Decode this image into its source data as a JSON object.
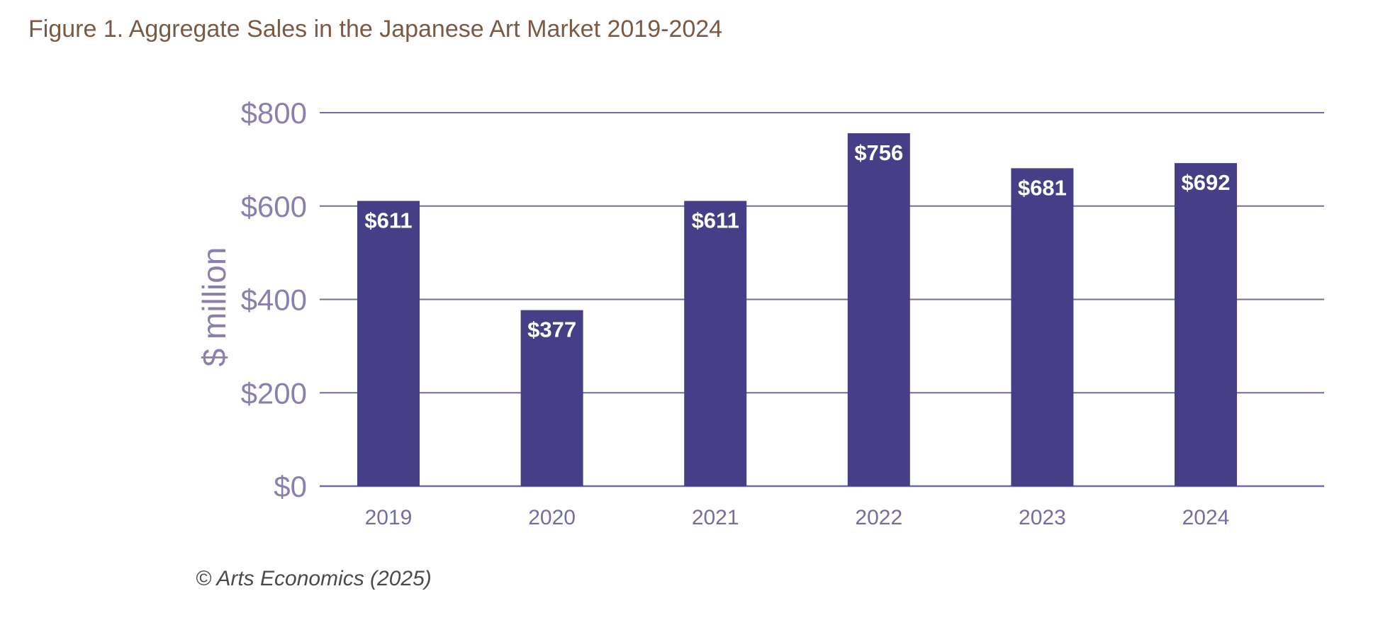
{
  "figure": {
    "title": "Figure 1. Aggregate Sales in the Japanese Art Market 2019-2024",
    "source": "©  Arts Economics (2025)"
  },
  "chart_data": {
    "type": "bar",
    "title": "Figure 1. Aggregate Sales in the Japanese Art Market 2019-2024",
    "xlabel": "",
    "ylabel": "$ million",
    "categories": [
      "2019",
      "2020",
      "2021",
      "2022",
      "2023",
      "2024"
    ],
    "values": [
      611,
      377,
      611,
      756,
      681,
      692
    ],
    "data_labels": [
      "$611",
      "$377",
      "$611",
      "$756",
      "$681",
      "$692"
    ],
    "ylim": [
      0,
      800
    ],
    "yticks": [
      0,
      200,
      400,
      600,
      800
    ],
    "ytick_labels": [
      "$0",
      "$200",
      "$400",
      "$600",
      "$800"
    ],
    "grid": true,
    "colors": {
      "bar": "#463f88",
      "grid": "#6f6ca3",
      "tick_text": "#8682ad",
      "title": "#7a5a44"
    }
  }
}
